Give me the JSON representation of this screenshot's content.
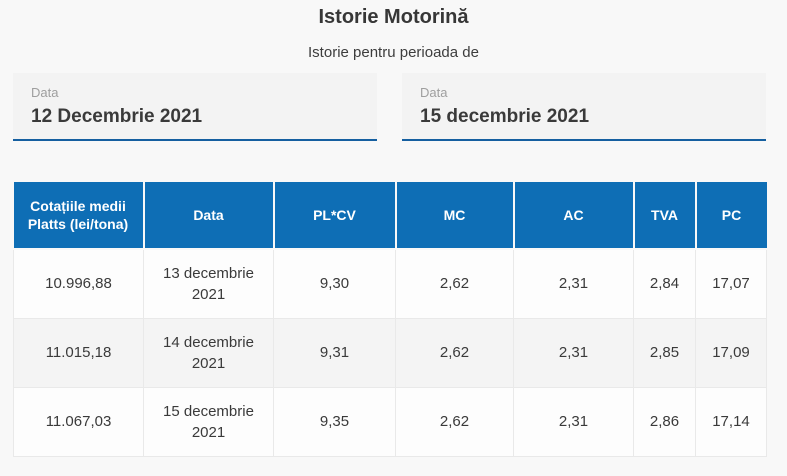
{
  "page": {
    "title": "Istorie Motorină",
    "subtitle": "Istorie pentru perioada de"
  },
  "date_from": {
    "label": "Data",
    "value": "12 Decembrie 2021"
  },
  "date_to": {
    "label": "Data",
    "value": "15 decembrie 2021"
  },
  "colors": {
    "header_blue": "#0e6eb5",
    "field_underline_blue": "#155fa0",
    "page_background": "#f8f8f8",
    "alt_row_gray": "#f4f4f4"
  },
  "table": {
    "columns": [
      "Cotațiile medii Platts (lei/tona)",
      "Data",
      "PL*CV",
      "MC",
      "AC",
      "TVA",
      "PC"
    ],
    "rows": [
      {
        "cells": [
          "10.996,88",
          "13 decembrie 2021",
          "9,30",
          "2,62",
          "2,31",
          "2,84",
          "17,07"
        ]
      },
      {
        "cells": [
          "11.015,18",
          "14 decembrie 2021",
          "9,31",
          "2,62",
          "2,31",
          "2,85",
          "17,09"
        ]
      },
      {
        "cells": [
          "11.067,03",
          "15 decembrie 2021",
          "9,35",
          "2,62",
          "2,31",
          "2,86",
          "17,14"
        ]
      }
    ]
  }
}
